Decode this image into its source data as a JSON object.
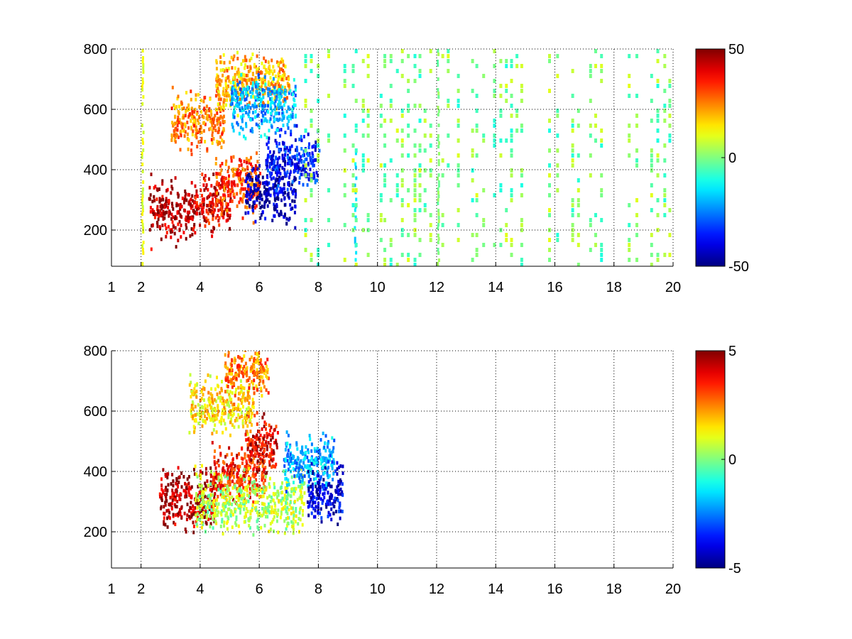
{
  "chart_data": [
    {
      "type": "heatmap",
      "title": "",
      "xlabel": "",
      "ylabel": "",
      "xlim": [
        1,
        20
      ],
      "ylim": [
        80,
        800
      ],
      "x_ticks": [
        1,
        2,
        4,
        6,
        8,
        10,
        12,
        14,
        16,
        18,
        20
      ],
      "x_tick_labels": [
        "1",
        "2",
        "4",
        "6",
        "8",
        "10",
        "12",
        "14",
        "16",
        "18",
        "20"
      ],
      "y_ticks": [
        200,
        400,
        600,
        800
      ],
      "y_tick_labels": [
        "200",
        "400",
        "600",
        "800"
      ],
      "grid": true,
      "colormap": "jet",
      "clim": [
        -50,
        50
      ],
      "colorbar_ticks": [
        -50,
        0,
        50
      ],
      "colorbar_tick_labels": [
        "-50",
        "0",
        "50"
      ],
      "features": [
        {
          "x_range": [
            2.2,
            3.8
          ],
          "y": 270,
          "value": 45
        },
        {
          "x_range": [
            3.8,
            5.0
          ],
          "y": 290,
          "value": 40
        },
        {
          "x_range": [
            4.5,
            6.0
          ],
          "y": 360,
          "value": 30
        },
        {
          "x_range": [
            5.5,
            7.2
          ],
          "y": 330,
          "value": -45
        },
        {
          "x_range": [
            6.2,
            8.0
          ],
          "y": 430,
          "value": -35
        },
        {
          "x_range": [
            3.0,
            4.8
          ],
          "y": 570,
          "value": 25
        },
        {
          "x_range": [
            4.5,
            7.0
          ],
          "y": 700,
          "value": 20
        },
        {
          "x_range": [
            5.0,
            7.2
          ],
          "y": 620,
          "value": -20
        },
        {
          "x_range": [
            2.0,
            2.1
          ],
          "y_range": [
            80,
            800
          ],
          "value": 10
        },
        {
          "x_range": [
            9.2,
            9.3
          ],
          "y_range": [
            80,
            460
          ],
          "value": -15
        },
        {
          "x_range": [
            12.0,
            12.1
          ],
          "y_range": [
            80,
            800
          ],
          "value": 0
        }
      ],
      "scatter_region": {
        "x_range": [
          7.5,
          20
        ],
        "y_range": [
          80,
          800
        ],
        "value_range": [
          -10,
          10
        ]
      }
    },
    {
      "type": "heatmap",
      "title": "",
      "xlabel": "",
      "ylabel": "",
      "xlim": [
        1,
        20
      ],
      "ylim": [
        80,
        800
      ],
      "x_ticks": [
        1,
        2,
        4,
        6,
        8,
        10,
        12,
        14,
        16,
        18,
        20
      ],
      "x_tick_labels": [
        "1",
        "2",
        "4",
        "6",
        "8",
        "10",
        "12",
        "14",
        "16",
        "18",
        "20"
      ],
      "y_ticks": [
        200,
        400,
        600,
        800
      ],
      "y_tick_labels": [
        "200",
        "400",
        "600",
        "800"
      ],
      "grid": true,
      "colormap": "jet",
      "clim": [
        -5,
        5
      ],
      "colorbar_ticks": [
        -5,
        0,
        5
      ],
      "colorbar_tick_labels": [
        "-5",
        "0",
        "5"
      ],
      "features": [
        {
          "x_range": [
            2.6,
            4.5
          ],
          "y": 310,
          "value": 4.5
        },
        {
          "x_range": [
            4.3,
            6.2
          ],
          "y": 400,
          "value": 3.5
        },
        {
          "x_range": [
            5.5,
            6.6
          ],
          "y": 490,
          "value": 4
        },
        {
          "x_range": [
            3.8,
            7.5
          ],
          "y": 300,
          "value": 0.5
        },
        {
          "x_range": [
            6.8,
            8.5
          ],
          "y": 440,
          "value": -2
        },
        {
          "x_range": [
            7.6,
            8.8
          ],
          "y": 330,
          "value": -4
        },
        {
          "x_range": [
            3.6,
            5.8
          ],
          "y": 620,
          "value": 1.5
        },
        {
          "x_range": [
            4.8,
            6.3
          ],
          "y": 740,
          "value": 2.5
        }
      ]
    }
  ]
}
